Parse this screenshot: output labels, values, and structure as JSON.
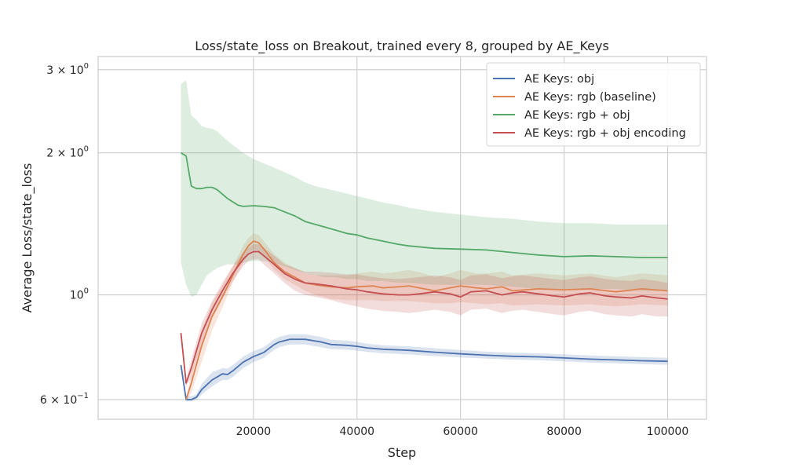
{
  "chart_data": {
    "type": "line",
    "title": "Loss/state_loss on Breakout, trained every 8, grouped by AE_Keys",
    "xlabel": "Step",
    "ylabel": "Average Loss/state_loss",
    "y_scale": "log",
    "xlim": [
      -10000,
      107500
    ],
    "ylim": [
      0.545,
      3.2
    ],
    "grid": true,
    "legend_position": "top-right",
    "x_ticks": [
      {
        "value": 20000,
        "label": "20000"
      },
      {
        "value": 40000,
        "label": "40000"
      },
      {
        "value": 60000,
        "label": "60000"
      },
      {
        "value": 80000,
        "label": "80000"
      },
      {
        "value": 100000,
        "label": "100000"
      }
    ],
    "y_ticks": [
      {
        "value": 0.6,
        "base": "6 × 10",
        "exp": "−1"
      },
      {
        "value": 1.0,
        "base": "10",
        "exp": "0"
      },
      {
        "value": 2.0,
        "base": "2 × 10",
        "exp": "0"
      },
      {
        "value": 3.0,
        "base": "3 × 10",
        "exp": "0"
      }
    ],
    "series": [
      {
        "name": "AE Keys: obj",
        "color": "#4c72b0",
        "x": [
          6000,
          7000,
          8000,
          9000,
          10000,
          12000,
          14000,
          15000,
          16000,
          18000,
          20000,
          22000,
          24000,
          25000,
          27000,
          30000,
          33000,
          35000,
          38000,
          40000,
          42000,
          45000,
          50000,
          55000,
          60000,
          65000,
          70000,
          75000,
          80000,
          85000,
          90000,
          95000,
          100000
        ],
        "y": [
          0.71,
          0.6,
          0.6,
          0.607,
          0.63,
          0.66,
          0.68,
          0.678,
          0.69,
          0.72,
          0.74,
          0.755,
          0.785,
          0.795,
          0.805,
          0.805,
          0.795,
          0.785,
          0.782,
          0.778,
          0.772,
          0.767,
          0.763,
          0.756,
          0.75,
          0.745,
          0.741,
          0.739,
          0.735,
          0.731,
          0.728,
          0.725,
          0.723
        ],
        "lower": [
          0.7,
          0.595,
          0.595,
          0.6,
          0.615,
          0.64,
          0.66,
          0.66,
          0.67,
          0.7,
          0.72,
          0.735,
          0.765,
          0.775,
          0.785,
          0.785,
          0.775,
          0.767,
          0.765,
          0.762,
          0.757,
          0.752,
          0.748,
          0.742,
          0.737,
          0.733,
          0.729,
          0.727,
          0.723,
          0.719,
          0.716,
          0.713,
          0.711
        ],
        "upper": [
          0.72,
          0.61,
          0.61,
          0.615,
          0.648,
          0.685,
          0.7,
          0.698,
          0.71,
          0.74,
          0.76,
          0.775,
          0.805,
          0.815,
          0.825,
          0.825,
          0.815,
          0.803,
          0.8,
          0.795,
          0.788,
          0.782,
          0.778,
          0.771,
          0.764,
          0.758,
          0.754,
          0.752,
          0.748,
          0.744,
          0.741,
          0.738,
          0.736
        ]
      },
      {
        "name": "AE Keys: rgb (baseline)",
        "color": "#dd8452",
        "x": [
          7000,
          8000,
          10000,
          12000,
          14000,
          16000,
          18000,
          19000,
          20000,
          21000,
          22000,
          24000,
          26000,
          28000,
          30000,
          32000,
          35000,
          38000,
          40000,
          43000,
          45000,
          48000,
          50000,
          53000,
          55000,
          58000,
          60000,
          63000,
          65000,
          68000,
          70000,
          75000,
          80000,
          85000,
          90000,
          95000,
          100000
        ],
        "y": [
          0.6,
          0.65,
          0.78,
          0.9,
          0.99,
          1.1,
          1.22,
          1.27,
          1.3,
          1.29,
          1.25,
          1.17,
          1.12,
          1.09,
          1.06,
          1.05,
          1.04,
          1.035,
          1.04,
          1.045,
          1.035,
          1.04,
          1.045,
          1.03,
          1.02,
          1.035,
          1.045,
          1.035,
          1.03,
          1.04,
          1.02,
          1.03,
          1.025,
          1.03,
          1.015,
          1.03,
          1.02
        ],
        "lower": [
          0.595,
          0.62,
          0.72,
          0.84,
          0.94,
          1.06,
          1.17,
          1.22,
          1.25,
          1.24,
          1.21,
          1.13,
          1.08,
          1.05,
          1.02,
          1.0,
          0.98,
          0.975,
          0.975,
          0.975,
          0.97,
          0.97,
          0.97,
          0.965,
          0.96,
          0.96,
          0.965,
          0.96,
          0.955,
          0.96,
          0.95,
          0.955,
          0.95,
          0.955,
          0.945,
          0.955,
          0.95
        ],
        "upper": [
          0.605,
          0.68,
          0.84,
          0.96,
          1.05,
          1.15,
          1.27,
          1.32,
          1.35,
          1.34,
          1.3,
          1.22,
          1.17,
          1.14,
          1.11,
          1.1,
          1.1,
          1.1,
          1.11,
          1.12,
          1.11,
          1.12,
          1.13,
          1.11,
          1.09,
          1.11,
          1.13,
          1.11,
          1.11,
          1.12,
          1.1,
          1.11,
          1.1,
          1.11,
          1.09,
          1.11,
          1.1
        ]
      },
      {
        "name": "AE Keys: rgb + obj",
        "color": "#55a868",
        "x": [
          6000,
          7000,
          8000,
          9000,
          10000,
          11000,
          12000,
          13000,
          15000,
          17000,
          18000,
          20000,
          22000,
          24000,
          26000,
          28000,
          30000,
          32000,
          34000,
          36000,
          38000,
          40000,
          42000,
          45000,
          48000,
          50000,
          55000,
          60000,
          65000,
          70000,
          75000,
          80000,
          85000,
          90000,
          95000,
          100000
        ],
        "y": [
          2.0,
          1.97,
          1.7,
          1.68,
          1.68,
          1.69,
          1.69,
          1.67,
          1.6,
          1.55,
          1.54,
          1.545,
          1.54,
          1.53,
          1.5,
          1.47,
          1.43,
          1.41,
          1.39,
          1.37,
          1.35,
          1.34,
          1.32,
          1.3,
          1.28,
          1.27,
          1.255,
          1.25,
          1.245,
          1.23,
          1.215,
          1.205,
          1.21,
          1.205,
          1.2,
          1.2
        ],
        "lower": [
          1.17,
          1.05,
          0.99,
          1.0,
          1.05,
          1.1,
          1.12,
          1.14,
          1.16,
          1.16,
          1.17,
          1.18,
          1.18,
          1.17,
          1.15,
          1.13,
          1.11,
          1.1,
          1.09,
          1.09,
          1.08,
          1.08,
          1.07,
          1.07,
          1.06,
          1.06,
          1.05,
          1.05,
          1.05,
          1.04,
          1.03,
          1.03,
          1.03,
          1.03,
          1.02,
          1.02
        ],
        "upper": [
          2.8,
          2.85,
          2.4,
          2.35,
          2.28,
          2.26,
          2.25,
          2.22,
          2.12,
          2.04,
          2.0,
          1.94,
          1.9,
          1.86,
          1.82,
          1.78,
          1.73,
          1.7,
          1.68,
          1.66,
          1.64,
          1.62,
          1.6,
          1.57,
          1.55,
          1.53,
          1.5,
          1.48,
          1.46,
          1.45,
          1.43,
          1.42,
          1.42,
          1.41,
          1.41,
          1.41
        ]
      },
      {
        "name": "AE Keys: rgb + obj encoding",
        "color": "#c44e52",
        "x": [
          6000,
          7000,
          8000,
          10000,
          12000,
          14000,
          16000,
          18000,
          19000,
          20000,
          21000,
          22000,
          24000,
          26000,
          28000,
          30000,
          32000,
          35000,
          38000,
          40000,
          42000,
          45000,
          48000,
          50000,
          52000,
          55000,
          58000,
          60000,
          62000,
          65000,
          68000,
          70000,
          72000,
          75000,
          78000,
          80000,
          83000,
          85000,
          88000,
          90000,
          93000,
          95000,
          98000,
          100000
        ],
        "y": [
          0.83,
          0.65,
          0.7,
          0.83,
          0.93,
          1.02,
          1.11,
          1.19,
          1.22,
          1.235,
          1.235,
          1.21,
          1.16,
          1.11,
          1.08,
          1.06,
          1.055,
          1.045,
          1.03,
          1.025,
          1.015,
          1.005,
          1.0,
          1.0,
          1.005,
          1.015,
          1.005,
          0.99,
          1.015,
          1.02,
          1.0,
          1.01,
          1.015,
          1.005,
          0.995,
          0.99,
          1.005,
          1.01,
          0.995,
          0.99,
          0.985,
          0.995,
          0.985,
          0.98
        ],
        "lower": [
          0.81,
          0.64,
          0.67,
          0.79,
          0.89,
          0.98,
          1.07,
          1.15,
          1.18,
          1.19,
          1.19,
          1.16,
          1.11,
          1.06,
          1.02,
          1.0,
          0.99,
          0.975,
          0.955,
          0.945,
          0.935,
          0.925,
          0.92,
          0.915,
          0.92,
          0.93,
          0.92,
          0.905,
          0.93,
          0.935,
          0.915,
          0.925,
          0.93,
          0.92,
          0.91,
          0.905,
          0.92,
          0.925,
          0.91,
          0.905,
          0.9,
          0.91,
          0.9,
          0.9
        ],
        "upper": [
          0.85,
          0.66,
          0.73,
          0.87,
          0.97,
          1.06,
          1.15,
          1.23,
          1.26,
          1.28,
          1.28,
          1.26,
          1.21,
          1.16,
          1.14,
          1.12,
          1.12,
          1.115,
          1.105,
          1.105,
          1.095,
          1.085,
          1.08,
          1.085,
          1.09,
          1.1,
          1.09,
          1.075,
          1.1,
          1.105,
          1.085,
          1.095,
          1.1,
          1.09,
          1.08,
          1.075,
          1.09,
          1.095,
          1.08,
          1.075,
          1.07,
          1.08,
          1.07,
          1.06
        ]
      }
    ]
  }
}
